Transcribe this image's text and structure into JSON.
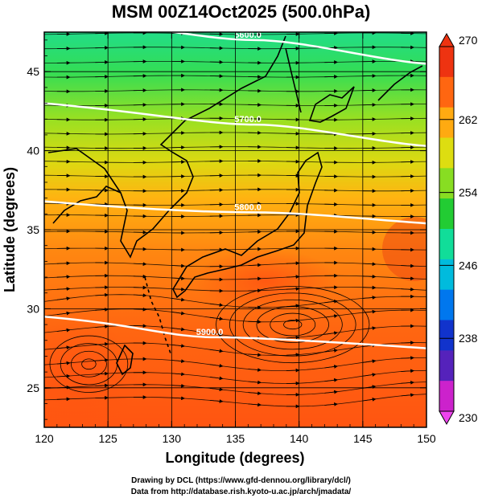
{
  "title": "MSM 00Z14Oct2025 (500.0hPa)",
  "x_axis": {
    "label": "Longitude (degrees)",
    "range": [
      120,
      150
    ],
    "ticks": [
      "120",
      "125",
      "130",
      "135",
      "140",
      "145",
      "150"
    ]
  },
  "y_axis": {
    "label": "Latitude  (degrees)",
    "range": [
      22.5,
      47.5
    ],
    "ticks": [
      "25",
      "30",
      "35",
      "40",
      "45"
    ]
  },
  "colorbar": {
    "range": [
      230,
      270
    ],
    "ticks": [
      "230",
      "238",
      "246",
      "254",
      "262",
      "270"
    ],
    "palette": [
      "#cc22cc",
      "#5522bb",
      "#1133cc",
      "#0077ee",
      "#00bbdd",
      "#11dd99",
      "#22cc33",
      "#88dd22",
      "#dddd11",
      "#ffaa11",
      "#ff6611",
      "#ee3311"
    ]
  },
  "contours": [
    {
      "label": "5600.0",
      "lat_start": 48.5,
      "lat_end": 45.5
    },
    {
      "label": "5700.0",
      "lat_start": 43.0,
      "lat_end": 40.3
    },
    {
      "label": "5800.0",
      "lat_start": 36.8,
      "lat_end": 35.4
    },
    {
      "label": "5900.0",
      "lat_start": 29.5,
      "lat_end": 27.5
    }
  ],
  "credits": {
    "line1": "Drawing by DCL (https://www.gfd-dennou.org/library/dcl/)",
    "line2": "Data from http://database.rish.kyoto-u.ac.jp/arch/jmadata/"
  }
}
